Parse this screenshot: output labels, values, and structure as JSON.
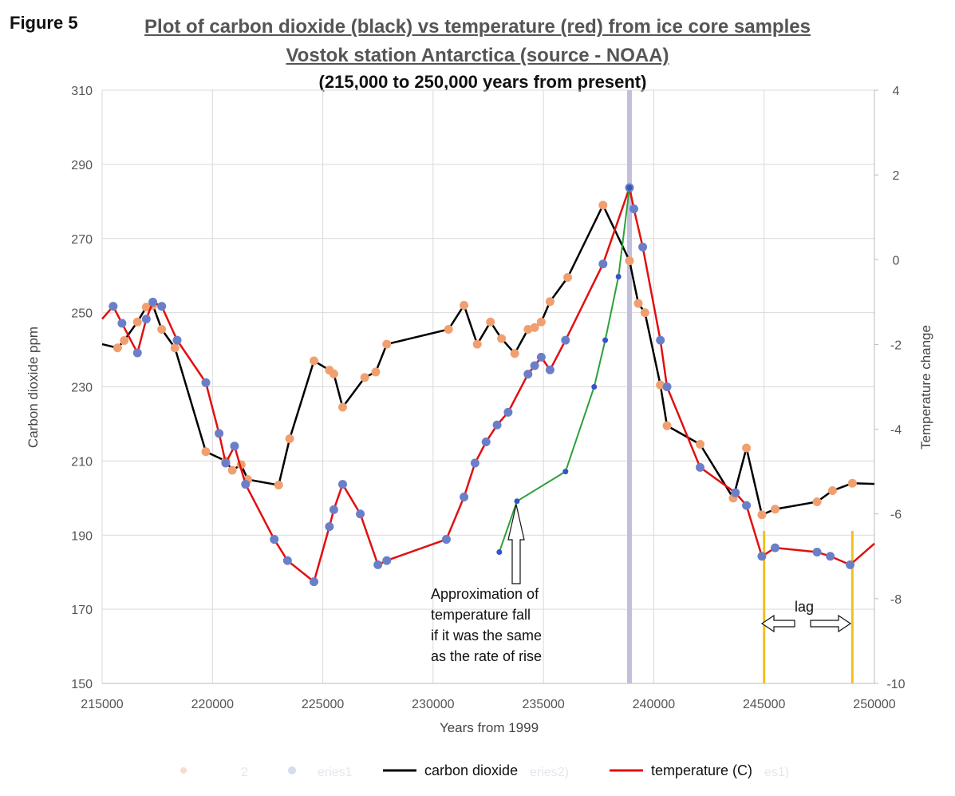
{
  "figure_label": "Figure 5",
  "title_line1": "Plot of carbon dioxide (black) vs temperature (red) from ice core samples",
  "title_line2": "Vostok station Antarctica (source  -  NOAA)",
  "title_line3": "(215,000 to 250,000 years from present)",
  "annotation": [
    "Approximation of",
    "temperature fall",
    "if it was the same",
    "as the rate of rise"
  ],
  "lag_label": "lag",
  "colors": {
    "co2": "#000000",
    "temp": "#e01010",
    "co2_marker": "#f0a070",
    "temp_marker": "#6a7fc8",
    "approx": "#2ea03a",
    "highlight": "#c0c0dc",
    "lag_lines": "#f0c020"
  },
  "chart_data": {
    "type": "line",
    "xlabel": "Years from 1999",
    "ylabel": "Carbon dioxide ppm",
    "y2label": "Temperature change",
    "xlim": [
      215000,
      250000
    ],
    "ylim": [
      150,
      310
    ],
    "y2lim": [
      -10,
      4
    ],
    "x_ticks": [
      "215000",
      "220000",
      "225000",
      "230000",
      "235000",
      "240000",
      "245000",
      "250000"
    ],
    "y_ticks": [
      "150",
      "170",
      "190",
      "210",
      "230",
      "250",
      "270",
      "290",
      "310"
    ],
    "y2_ticks": [
      "-10",
      "-8",
      "-6",
      "-4",
      "-2",
      "0",
      "2",
      "4"
    ],
    "series": [
      {
        "name": "carbon dioxide",
        "axis": "left",
        "points": [
          [
            215000,
            241.5
          ],
          [
            215700,
            240.5
          ],
          [
            216000,
            242.5
          ],
          [
            216600,
            247.5
          ],
          [
            217000,
            251.5
          ],
          [
            217300,
            252
          ],
          [
            217700,
            245.5
          ],
          [
            218300,
            240.5
          ],
          [
            219700,
            212.5
          ],
          [
            220600,
            210
          ],
          [
            220900,
            207.5
          ],
          [
            221300,
            209
          ],
          [
            221600,
            205
          ],
          [
            223000,
            203.5
          ],
          [
            223500,
            216
          ],
          [
            224600,
            237
          ],
          [
            225300,
            234.5
          ],
          [
            225500,
            233.5
          ],
          [
            225900,
            224.5
          ],
          [
            226900,
            232.5
          ],
          [
            227400,
            234
          ],
          [
            227900,
            241.5
          ],
          [
            230700,
            245.5
          ],
          [
            231400,
            252
          ],
          [
            232000,
            241.5
          ],
          [
            232600,
            247.5
          ],
          [
            233100,
            243
          ],
          [
            233700,
            239
          ],
          [
            234300,
            245.5
          ],
          [
            234600,
            246
          ],
          [
            234900,
            247.5
          ],
          [
            235300,
            253
          ],
          [
            236100,
            259.5
          ],
          [
            237700,
            279
          ],
          [
            238900,
            264
          ],
          [
            239300,
            252.5
          ],
          [
            239600,
            250
          ],
          [
            240300,
            230.5
          ],
          [
            240600,
            219.5
          ],
          [
            242100,
            214.5
          ],
          [
            243600,
            200
          ],
          [
            244200,
            213.5
          ],
          [
            244900,
            195.5
          ],
          [
            245500,
            197
          ],
          [
            247400,
            199
          ],
          [
            248100,
            202
          ],
          [
            249000,
            204
          ],
          [
            250000,
            203.8
          ]
        ]
      },
      {
        "name": "temperature (C)",
        "axis": "right",
        "points": [
          [
            215000,
            -1.4
          ],
          [
            215500,
            -1.1
          ],
          [
            215900,
            -1.5
          ],
          [
            216600,
            -2.2
          ],
          [
            217000,
            -1.4
          ],
          [
            217300,
            -1.0
          ],
          [
            217700,
            -1.1
          ],
          [
            218400,
            -1.9
          ],
          [
            219700,
            -2.9
          ],
          [
            220300,
            -4.1
          ],
          [
            220600,
            -4.8
          ],
          [
            221000,
            -4.4
          ],
          [
            221500,
            -5.3
          ],
          [
            222800,
            -6.6
          ],
          [
            223400,
            -7.1
          ],
          [
            224600,
            -7.6
          ],
          [
            225300,
            -6.3
          ],
          [
            225500,
            -5.9
          ],
          [
            225900,
            -5.3
          ],
          [
            226700,
            -6.0
          ],
          [
            227500,
            -7.2
          ],
          [
            227900,
            -7.1
          ],
          [
            230600,
            -6.6
          ],
          [
            231400,
            -5.6
          ],
          [
            231900,
            -4.8
          ],
          [
            232400,
            -4.3
          ],
          [
            232900,
            -3.9
          ],
          [
            233400,
            -3.6
          ],
          [
            234300,
            -2.7
          ],
          [
            234600,
            -2.5
          ],
          [
            234900,
            -2.3
          ],
          [
            235300,
            -2.6
          ],
          [
            236000,
            -1.9
          ],
          [
            237700,
            -0.1
          ],
          [
            238900,
            1.7
          ],
          [
            239100,
            1.2
          ],
          [
            239500,
            0.3
          ],
          [
            240300,
            -1.9
          ],
          [
            240600,
            -3.0
          ],
          [
            242100,
            -4.9
          ],
          [
            243700,
            -5.5
          ],
          [
            244200,
            -5.8
          ],
          [
            244900,
            -7.0
          ],
          [
            245500,
            -6.8
          ],
          [
            247400,
            -6.9
          ],
          [
            248000,
            -7.0
          ],
          [
            248900,
            -7.2
          ],
          [
            250000,
            -6.7
          ]
        ]
      },
      {
        "name": "approximation",
        "axis": "right",
        "points": [
          [
            233000,
            -6.9
          ],
          [
            233800,
            -5.7
          ],
          [
            236000,
            -5.0
          ],
          [
            237300,
            -3.0
          ],
          [
            237800,
            -1.9
          ],
          [
            238400,
            -0.4
          ],
          [
            238900,
            1.7
          ]
        ]
      }
    ],
    "highlight_x": 238900,
    "lag_lines_x": [
      245000,
      249000
    ]
  },
  "legend": {
    "items": [
      {
        "label": "carbon dioxide",
        "color": "#000000"
      },
      {
        "label": "temperature (C)",
        "color": "#e01010"
      }
    ],
    "faint_fragments": [
      "2",
      "eries1",
      "eries2)",
      "es1)"
    ]
  }
}
